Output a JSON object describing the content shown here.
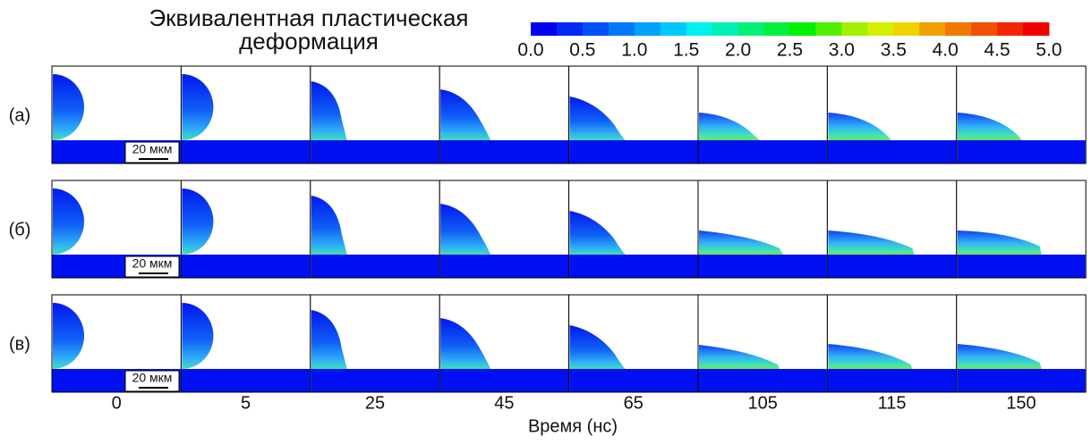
{
  "title": [
    "Эквивалентная пластическая",
    "деформация"
  ],
  "colorbar": {
    "colors": [
      "#0000f0",
      "#0028f5",
      "#0050f8",
      "#0078fa",
      "#00a0fc",
      "#00c8fd",
      "#00f0f0",
      "#00f0b4",
      "#00f078",
      "#00f03c",
      "#00f000",
      "#50f000",
      "#a0f000",
      "#d2f000",
      "#f0d200",
      "#f0a000",
      "#f07800",
      "#f05000",
      "#f02800",
      "#f00000"
    ],
    "ticks": [
      {
        "value": 0,
        "label": "0.0"
      },
      {
        "value": 0.5,
        "label": "0.5"
      },
      {
        "value": 1,
        "label": "1.0"
      },
      {
        "value": 1.5,
        "label": "1.5"
      },
      {
        "value": 2,
        "label": "2.0"
      },
      {
        "value": 2.5,
        "label": "2.5"
      },
      {
        "value": 3,
        "label": "3.0"
      },
      {
        "value": 3.5,
        "label": "3.5"
      },
      {
        "value": 4,
        "label": "4.0"
      },
      {
        "value": 4.5,
        "label": "4.5"
      },
      {
        "value": 5,
        "label": "5.0"
      }
    ],
    "lim": [
      0,
      5
    ]
  },
  "rows": [
    {
      "label": "(а)",
      "scale_bar": "20 мкм"
    },
    {
      "label": "(б)",
      "scale_bar": "20 мкм"
    },
    {
      "label": "(в)",
      "scale_bar": "20 мкм"
    }
  ],
  "times": [
    "0",
    "5",
    "25",
    "45",
    "65",
    "105",
    "115",
    "150"
  ],
  "x_label": "Время (нс)"
}
